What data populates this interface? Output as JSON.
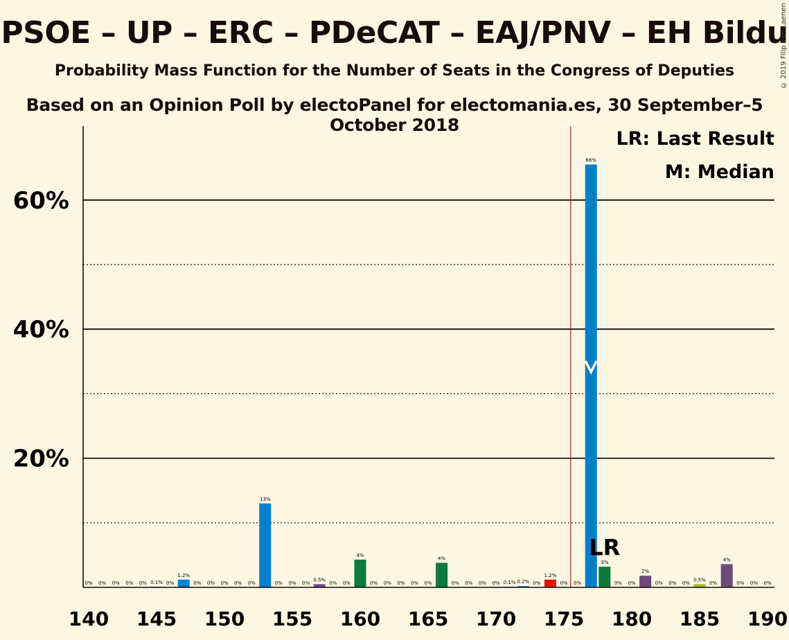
{
  "title": "PSOE – UP – ERC – PDeCAT – EAJ/PNV – EH Bildu",
  "subtitle": "Probability Mass Function for the Number of Seats in the Congress of Deputies",
  "source": "Based on an Opinion Poll by electoPanel for electomania.es, 30 September–5 October 2018",
  "copyright": "© 2019 Filip van Laenen",
  "legend": {
    "last_result": "LR: Last Result",
    "median": "M: Median"
  },
  "chart_data": {
    "type": "bar",
    "xlim": [
      140,
      190
    ],
    "ylim": [
      0,
      70
    ],
    "x_ticks": [
      140,
      145,
      150,
      155,
      160,
      165,
      170,
      175,
      180,
      185,
      190
    ],
    "y_ticks": [
      {
        "value": 20,
        "label": "20%"
      },
      {
        "value": 40,
        "label": "40%"
      },
      {
        "value": 60,
        "label": "60%"
      }
    ],
    "y_minor_gridlines": [
      10,
      30,
      50
    ],
    "last_result_seat": 176,
    "last_result_label": "LR",
    "median_seat": 177,
    "median_marker": "M",
    "colors": {
      "blue": "#0080cc",
      "green": "#0b7a3b",
      "purple": "#6d4a7a",
      "red": "#e8120c",
      "lime": "#a5b82c",
      "lr_line": "#b22222",
      "grid": "#1a0a0a"
    },
    "bars": [
      {
        "seat": 140,
        "value": 0,
        "label": "0%",
        "color": "blue"
      },
      {
        "seat": 141,
        "value": 0,
        "label": "0%",
        "color": "blue"
      },
      {
        "seat": 142,
        "value": 0,
        "label": "0%",
        "color": "blue"
      },
      {
        "seat": 143,
        "value": 0,
        "label": "0%",
        "color": "blue"
      },
      {
        "seat": 144,
        "value": 0,
        "label": "0%",
        "color": "blue"
      },
      {
        "seat": 145,
        "value": 0.1,
        "label": "0.1%",
        "color": "blue"
      },
      {
        "seat": 146,
        "value": 0,
        "label": "0%",
        "color": "blue"
      },
      {
        "seat": 147,
        "value": 1.2,
        "label": "1.2%",
        "color": "blue"
      },
      {
        "seat": 148,
        "value": 0,
        "label": "0%",
        "color": "blue"
      },
      {
        "seat": 149,
        "value": 0,
        "label": "0%",
        "color": "blue"
      },
      {
        "seat": 150,
        "value": 0,
        "label": "0%",
        "color": "blue"
      },
      {
        "seat": 151,
        "value": 0,
        "label": "0%",
        "color": "blue"
      },
      {
        "seat": 152,
        "value": 0,
        "label": "0%",
        "color": "blue"
      },
      {
        "seat": 153,
        "value": 13,
        "label": "13%",
        "color": "blue"
      },
      {
        "seat": 154,
        "value": 0,
        "label": "0%",
        "color": "blue"
      },
      {
        "seat": 155,
        "value": 0,
        "label": "0%",
        "color": "blue"
      },
      {
        "seat": 156,
        "value": 0,
        "label": "0%",
        "color": "blue"
      },
      {
        "seat": 157,
        "value": 0.5,
        "label": "0.5%",
        "color": "purple"
      },
      {
        "seat": 158,
        "value": 0,
        "label": "0%",
        "color": "blue"
      },
      {
        "seat": 159,
        "value": 0,
        "label": "0%",
        "color": "blue"
      },
      {
        "seat": 160,
        "value": 4.3,
        "label": "4%",
        "color": "green"
      },
      {
        "seat": 161,
        "value": 0,
        "label": "0%",
        "color": "blue"
      },
      {
        "seat": 162,
        "value": 0,
        "label": "0%",
        "color": "blue"
      },
      {
        "seat": 163,
        "value": 0,
        "label": "0%",
        "color": "blue"
      },
      {
        "seat": 164,
        "value": 0,
        "label": "0%",
        "color": "blue"
      },
      {
        "seat": 165,
        "value": 0,
        "label": "0%",
        "color": "blue"
      },
      {
        "seat": 166,
        "value": 3.8,
        "label": "4%",
        "color": "green"
      },
      {
        "seat": 167,
        "value": 0,
        "label": "0%",
        "color": "blue"
      },
      {
        "seat": 168,
        "value": 0,
        "label": "0%",
        "color": "blue"
      },
      {
        "seat": 169,
        "value": 0,
        "label": "0%",
        "color": "blue"
      },
      {
        "seat": 170,
        "value": 0,
        "label": "0%",
        "color": "blue"
      },
      {
        "seat": 171,
        "value": 0.1,
        "label": "0.1%",
        "color": "blue"
      },
      {
        "seat": 172,
        "value": 0.2,
        "label": "0.2%",
        "color": "blue"
      },
      {
        "seat": 173,
        "value": 0,
        "label": "0%",
        "color": "blue"
      },
      {
        "seat": 174,
        "value": 1.2,
        "label": "1.2%",
        "color": "red"
      },
      {
        "seat": 175,
        "value": 0,
        "label": "0%",
        "color": "blue"
      },
      {
        "seat": 176,
        "value": 0,
        "label": "0%",
        "color": "blue"
      },
      {
        "seat": 177,
        "value": 65.5,
        "label": "66%",
        "color": "blue"
      },
      {
        "seat": 178,
        "value": 3.2,
        "label": "3%",
        "color": "green"
      },
      {
        "seat": 179,
        "value": 0,
        "label": "0%",
        "color": "blue"
      },
      {
        "seat": 180,
        "value": 0,
        "label": "0%",
        "color": "blue"
      },
      {
        "seat": 181,
        "value": 1.8,
        "label": "2%",
        "color": "purple"
      },
      {
        "seat": 182,
        "value": 0,
        "label": "0%",
        "color": "blue"
      },
      {
        "seat": 183,
        "value": 0,
        "label": "0%",
        "color": "blue"
      },
      {
        "seat": 184,
        "value": 0,
        "label": "0%",
        "color": "blue"
      },
      {
        "seat": 185,
        "value": 0.5,
        "label": "0.5%",
        "color": "lime"
      },
      {
        "seat": 186,
        "value": 0,
        "label": "0%",
        "color": "blue"
      },
      {
        "seat": 187,
        "value": 3.6,
        "label": "4%",
        "color": "purple"
      },
      {
        "seat": 188,
        "value": 0,
        "label": "0%",
        "color": "blue"
      },
      {
        "seat": 189,
        "value": 0,
        "label": "0%",
        "color": "blue"
      },
      {
        "seat": 190,
        "value": 0,
        "label": "0%",
        "color": "blue"
      }
    ]
  }
}
